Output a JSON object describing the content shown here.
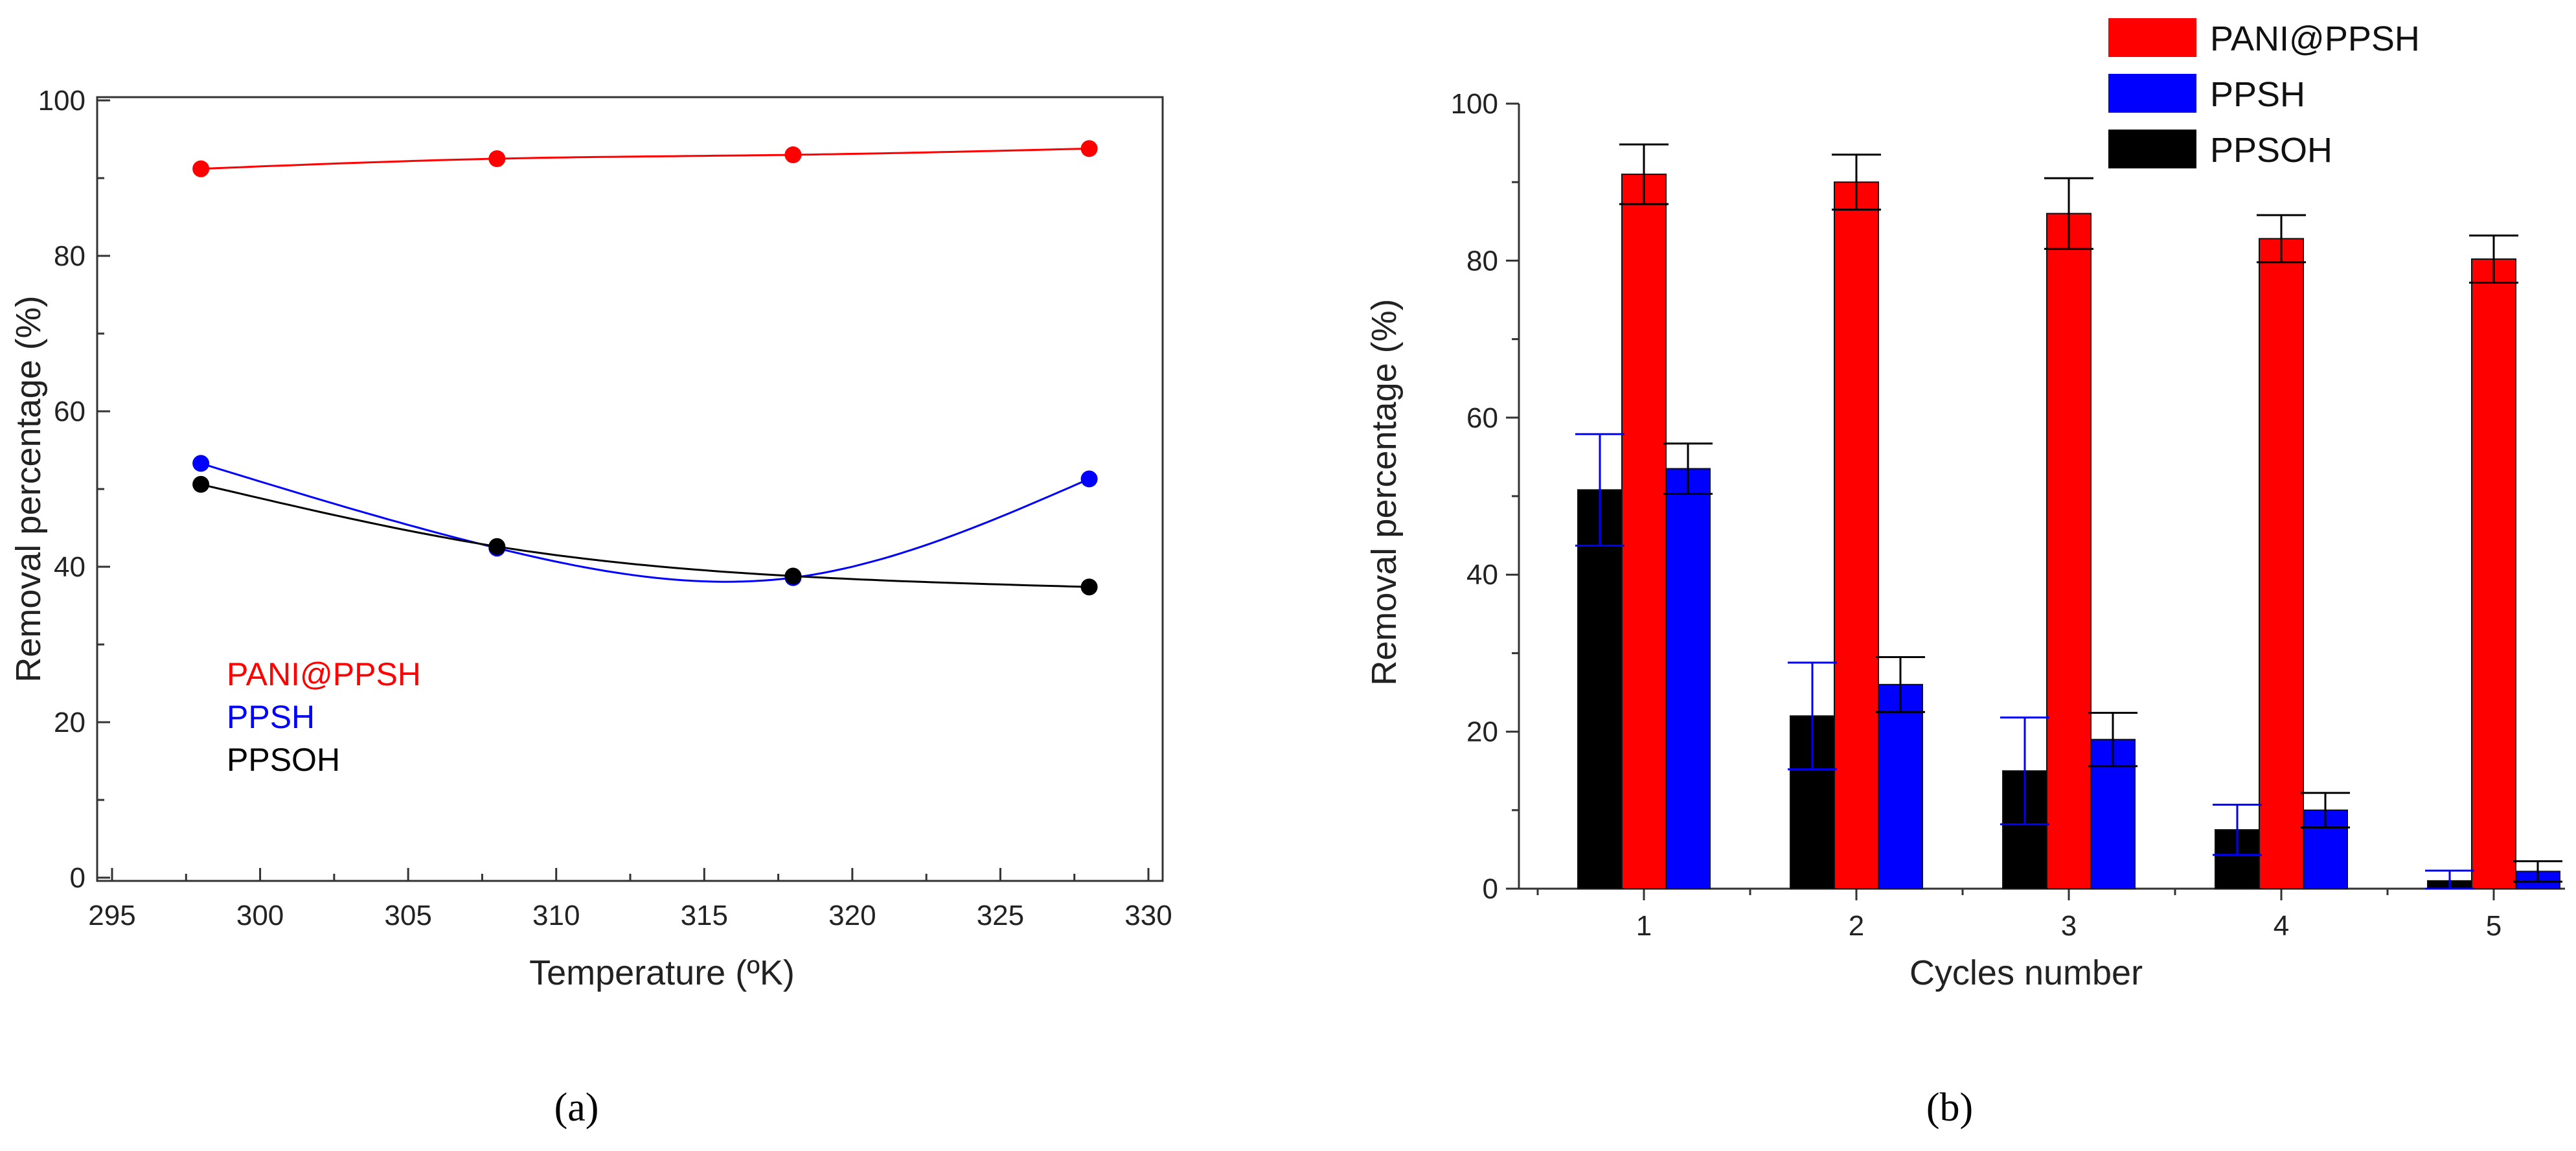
{
  "colors": {
    "pani": "#ff0000",
    "ppsh": "#0000ff",
    "ppsoh": "#000000"
  },
  "chart_data": [
    {
      "id": "a",
      "type": "line",
      "caption": "(a)",
      "xlabel": "Temperature (ºK)",
      "ylabel": "Removal percentage (%)",
      "xlim": [
        295,
        330
      ],
      "ylim": [
        0,
        100
      ],
      "xticks": [
        "295",
        "300",
        "305",
        "310",
        "315",
        "320",
        "325",
        "330"
      ],
      "yticks": [
        "0",
        "20",
        "40",
        "60",
        "80",
        "100"
      ],
      "x": [
        298,
        308,
        318,
        328
      ],
      "series": [
        {
          "name": "PANI@PPSH",
          "color": "#ff0000",
          "values": [
            91.2,
            92.5,
            93.0,
            93.8
          ]
        },
        {
          "name": "PPSH",
          "color": "#0000ff",
          "values": [
            53.3,
            42.4,
            38.6,
            51.3
          ]
        },
        {
          "name": "PPSOH",
          "color": "#000000",
          "values": [
            50.6,
            42.6,
            38.8,
            37.4
          ]
        }
      ],
      "legend": [
        "PANI@PPSH",
        "PPSH",
        "PPSOH"
      ]
    },
    {
      "id": "b",
      "type": "bar",
      "caption": "(b)",
      "xlabel": "Cycles number",
      "ylabel": "Removal percentage (%)",
      "ylim": [
        0,
        100
      ],
      "yticks": [
        "0",
        "20",
        "40",
        "60",
        "80",
        "100"
      ],
      "categories": [
        "1",
        "2",
        "3",
        "4",
        "5"
      ],
      "series": [
        {
          "name": "PPSOH",
          "color": "#000000",
          "errcolor": "#0000ff",
          "values": [
            50.8,
            22.0,
            15.0,
            7.5,
            1.0
          ],
          "errors": [
            7.1,
            6.8,
            6.8,
            3.2,
            1.3
          ]
        },
        {
          "name": "PANI@PPSH",
          "color": "#ff0000",
          "errcolor": "#000000",
          "values": [
            91.0,
            90.0,
            86.0,
            82.8,
            80.2
          ],
          "errors": [
            3.8,
            3.5,
            4.5,
            3.0,
            3.0
          ]
        },
        {
          "name": "PPSH",
          "color": "#0000ff",
          "errcolor": "#000000",
          "values": [
            53.5,
            26.0,
            19.0,
            10.0,
            2.2
          ],
          "errors": [
            3.2,
            3.5,
            3.4,
            2.2,
            1.3
          ]
        }
      ],
      "legend": [
        "PANI@PPSH",
        "PPSH",
        "PPSOH"
      ]
    }
  ]
}
